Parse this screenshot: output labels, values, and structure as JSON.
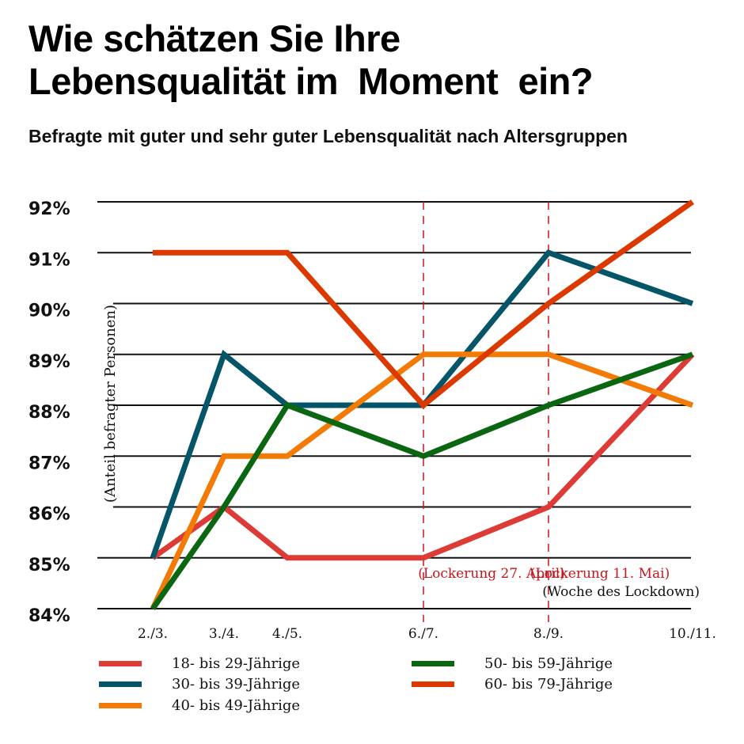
{
  "chart_data": {
    "type": "line",
    "title": "Wie schätzen Sie Ihre\nLebensqualität im  Moment  ein?",
    "subtitle": "Befragte mit guter und sehr guter Lebensqualität nach Altersgruppen",
    "xlabel": "(Woche des Lockdown)",
    "ylabel": "(Anteil befragter Personen)",
    "ylim": [
      84,
      92
    ],
    "yticks": [
      92,
      91,
      90,
      89,
      88,
      87,
      86,
      85,
      84
    ],
    "ytick_labels": [
      "92%",
      "91%",
      "90%",
      "89%",
      "88%",
      "87%",
      "86%",
      "85%",
      "84%"
    ],
    "categories": [
      "2./3.",
      "3./4.",
      "4./5.",
      "6./7.",
      "8./9.",
      "10./11."
    ],
    "grid": true,
    "legend_position": "bottom",
    "series": [
      {
        "name": "18- bis 29-Jährige",
        "color": "#dd3c36",
        "values": [
          85,
          86,
          85,
          85,
          86,
          89
        ]
      },
      {
        "name": "30- bis 39-Jährige",
        "color": "#045568",
        "values": [
          85,
          89,
          88,
          88,
          91,
          90
        ]
      },
      {
        "name": "40- bis 49-Jährige",
        "color": "#f27a05",
        "values": [
          84,
          87,
          87,
          89,
          89,
          88
        ]
      },
      {
        "name": "50- bis 59-Jährige",
        "color": "#0a6611",
        "values": [
          84,
          86,
          88,
          87,
          88,
          89
        ]
      },
      {
        "name": "60- bis 79-Jährige",
        "color": "#dc3900",
        "values": [
          91,
          91,
          91,
          88,
          90,
          92
        ]
      }
    ],
    "annotations": [
      {
        "text": "(Lockerung 27. April)",
        "at_category": "6./7.",
        "color": "#c8161d"
      },
      {
        "text": "(Lockerung 11. Mai)",
        "at_category": "8./9.",
        "color": "#c8161d"
      }
    ]
  }
}
